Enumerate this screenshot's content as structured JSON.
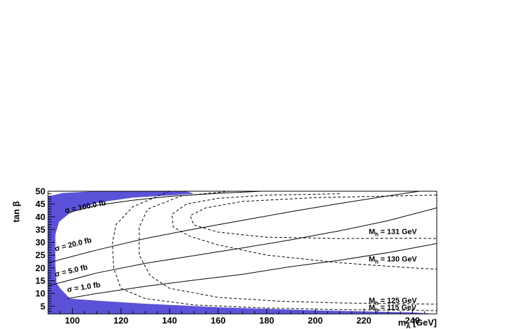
{
  "chart_data": {
    "type": "line",
    "xlabel": "m_A [GeV]",
    "xlabel_main": "m",
    "xlabel_sub": "A",
    "xlabel_unit": " [GeV]",
    "ylabel": "tan β",
    "xlim": [
      90,
      250
    ],
    "ylim": [
      2,
      50
    ],
    "x_ticks": [
      100,
      120,
      140,
      160,
      180,
      200,
      220,
      240
    ],
    "y_ticks": [
      5,
      10,
      15,
      20,
      25,
      30,
      35,
      40,
      45,
      50
    ],
    "fill_color": "#5b52d9",
    "excluded_region": {
      "color": "#5b52d9",
      "boundary": [
        [
          90,
          48
        ],
        [
          96,
          49.3
        ],
        [
          110,
          50
        ],
        [
          147,
          50
        ],
        [
          150,
          49
        ],
        [
          142,
          48.5
        ],
        [
          125,
          47.5
        ],
        [
          110,
          45.5
        ],
        [
          99,
          41.5
        ],
        [
          94.5,
          38
        ],
        [
          93,
          33
        ],
        [
          93,
          21
        ],
        [
          93.5,
          14
        ],
        [
          95,
          12
        ],
        [
          97,
          10
        ],
        [
          99,
          8
        ],
        [
          110,
          7.2
        ],
        [
          130,
          6
        ],
        [
          160,
          4.6
        ],
        [
          200,
          3.4
        ],
        [
          240,
          2.6
        ],
        [
          250,
          2
        ]
      ]
    },
    "series": [
      {
        "name": "σ = 100.0 fb",
        "style": "solid",
        "label_main": "σ = 100.0 fb",
        "label_at": [
          97,
          41.5
        ],
        "x": [
          98,
          110,
          125,
          140,
          160,
          178
        ],
        "y": [
          41.5,
          44.5,
          46.5,
          48,
          49.2,
          50
        ]
      },
      {
        "name": "σ = 20.0 fb",
        "style": "solid",
        "label_main": "σ = 20.0 fb",
        "label_at": [
          93,
          26.5
        ],
        "x": [
          90,
          110,
          130,
          150,
          170,
          190,
          210,
          230,
          250
        ],
        "y": [
          22,
          27,
          31.5,
          35.2,
          38.6,
          42,
          45.2,
          48.2,
          51
        ]
      },
      {
        "name": "σ = 5.0 fb",
        "style": "solid",
        "label_main": "σ = 5.0 fb",
        "label_at": [
          93,
          16.5
        ],
        "x": [
          90,
          110,
          130,
          150,
          170,
          190,
          210,
          230,
          250
        ],
        "y": [
          13,
          18,
          21.8,
          24.8,
          27.8,
          31,
          34.5,
          38.5,
          43.5
        ]
      },
      {
        "name": "σ = 1.0 fb",
        "style": "solid",
        "label_main": "σ = 1.0 fb",
        "label_at": [
          98,
          10.5
        ],
        "x": [
          98,
          110,
          130,
          150,
          170,
          190,
          210,
          230,
          250
        ],
        "y": [
          8,
          10,
          12.8,
          15.2,
          17.5,
          20.5,
          23,
          26,
          29.5
        ]
      },
      {
        "name": "M_h = 115 GeV",
        "style": "dashed",
        "label_main": "M",
        "label_sub": "h",
        "label_rest": " = 115 GeV",
        "label_at": [
          222,
          3.6
        ],
        "x": [
          140,
          125,
          118,
          116.5,
          117,
          120,
          130,
          150,
          180,
          210,
          240,
          250
        ],
        "y": [
          50,
          44,
          37,
          30,
          20,
          12,
          8,
          5.5,
          4.3,
          3.7,
          3.4,
          3.3
        ]
      },
      {
        "name": "M_h = 125 GeV",
        "style": "dashed",
        "label_main": "M",
        "label_sub": "h",
        "label_rest": " = 125 GeV",
        "label_at": [
          222,
          6.3
        ],
        "x": [
          165,
          145,
          131,
          127.5,
          127.5,
          132,
          140,
          160,
          185,
          210,
          235,
          250
        ],
        "y": [
          50,
          48.2,
          43,
          36,
          25,
          17,
          12,
          8.5,
          7,
          6.3,
          6,
          5.8
        ]
      },
      {
        "name": "M_h = 130 GeV",
        "style": "dashed",
        "label_main": "M",
        "label_sub": "h",
        "label_rest": " = 130 GeV",
        "label_at": [
          222,
          22.5
        ],
        "x": [
          210,
          180,
          160,
          147,
          141,
          141.5,
          148,
          160,
          180,
          210,
          240,
          250
        ],
        "y": [
          49,
          48.5,
          47.2,
          45,
          41,
          36,
          32.5,
          29,
          25,
          22,
          20,
          19.5
        ]
      },
      {
        "name": "M_h = 131 GeV",
        "style": "dashed",
        "label_main": "M",
        "label_sub": "h",
        "label_rest": " = 131 GeV",
        "label_at": [
          222,
          33.3
        ],
        "x": [
          250,
          200,
          170,
          155,
          148.5,
          150,
          160,
          180,
          210,
          240,
          250
        ],
        "y": [
          48.5,
          47.5,
          46,
          43.5,
          40.5,
          36.8,
          34,
          32,
          31.5,
          31.6,
          31.5
        ]
      }
    ]
  }
}
